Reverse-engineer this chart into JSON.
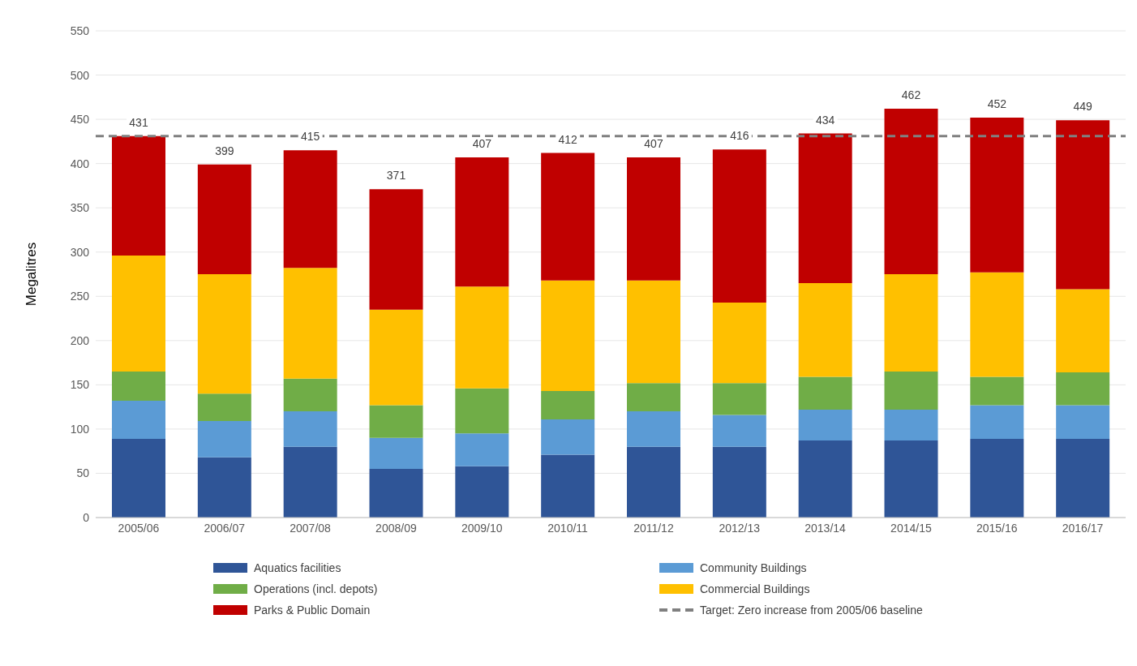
{
  "chart_data": {
    "type": "bar",
    "stacked": true,
    "ylabel": "Megalitres",
    "categories": [
      "2005/06",
      "2006/07",
      "2007/08",
      "2008/09",
      "2009/10",
      "2010/11",
      "2011/12",
      "2012/13",
      "2013/14",
      "2014/15",
      "2015/16",
      "2016/17"
    ],
    "series": [
      {
        "name": "Aquatics facilities",
        "color": "#2f5597",
        "values": [
          89,
          68,
          80,
          55,
          58,
          71,
          80,
          80,
          87,
          87,
          89,
          89
        ]
      },
      {
        "name": "Community Buildings",
        "color": "#5b9bd5",
        "values": [
          43,
          41,
          40,
          35,
          37,
          40,
          40,
          36,
          35,
          35,
          38,
          38
        ]
      },
      {
        "name": "Operations (incl. depots)",
        "color": "#70ad47",
        "values": [
          33,
          31,
          37,
          37,
          51,
          32,
          32,
          36,
          37,
          43,
          32,
          37
        ]
      },
      {
        "name": "Commercial Buildings",
        "color": "#ffc000",
        "values": [
          131,
          135,
          125,
          108,
          115,
          125,
          116,
          91,
          106,
          110,
          118,
          94
        ]
      },
      {
        "name": "Parks & Public Domain",
        "color": "#c00000",
        "values": [
          135,
          124,
          133,
          136,
          146,
          144,
          139,
          173,
          169,
          187,
          175,
          191
        ]
      }
    ],
    "totals": [
      "431",
      "399",
      "415",
      "371",
      "407",
      "412",
      "407",
      "416",
      "434",
      "462",
      "452",
      "449"
    ],
    "ref_lines": [
      {
        "axis": "y",
        "value": 431,
        "label": "Target: Zero increase from 2005/06 baseline",
        "color": "#808080",
        "line_style": "dashed"
      }
    ],
    "ylim": [
      0,
      550
    ],
    "yticks": [
      0,
      50,
      100,
      150,
      200,
      250,
      300,
      350,
      400,
      450,
      500,
      550
    ],
    "grid": "y",
    "legend": "bottom"
  }
}
